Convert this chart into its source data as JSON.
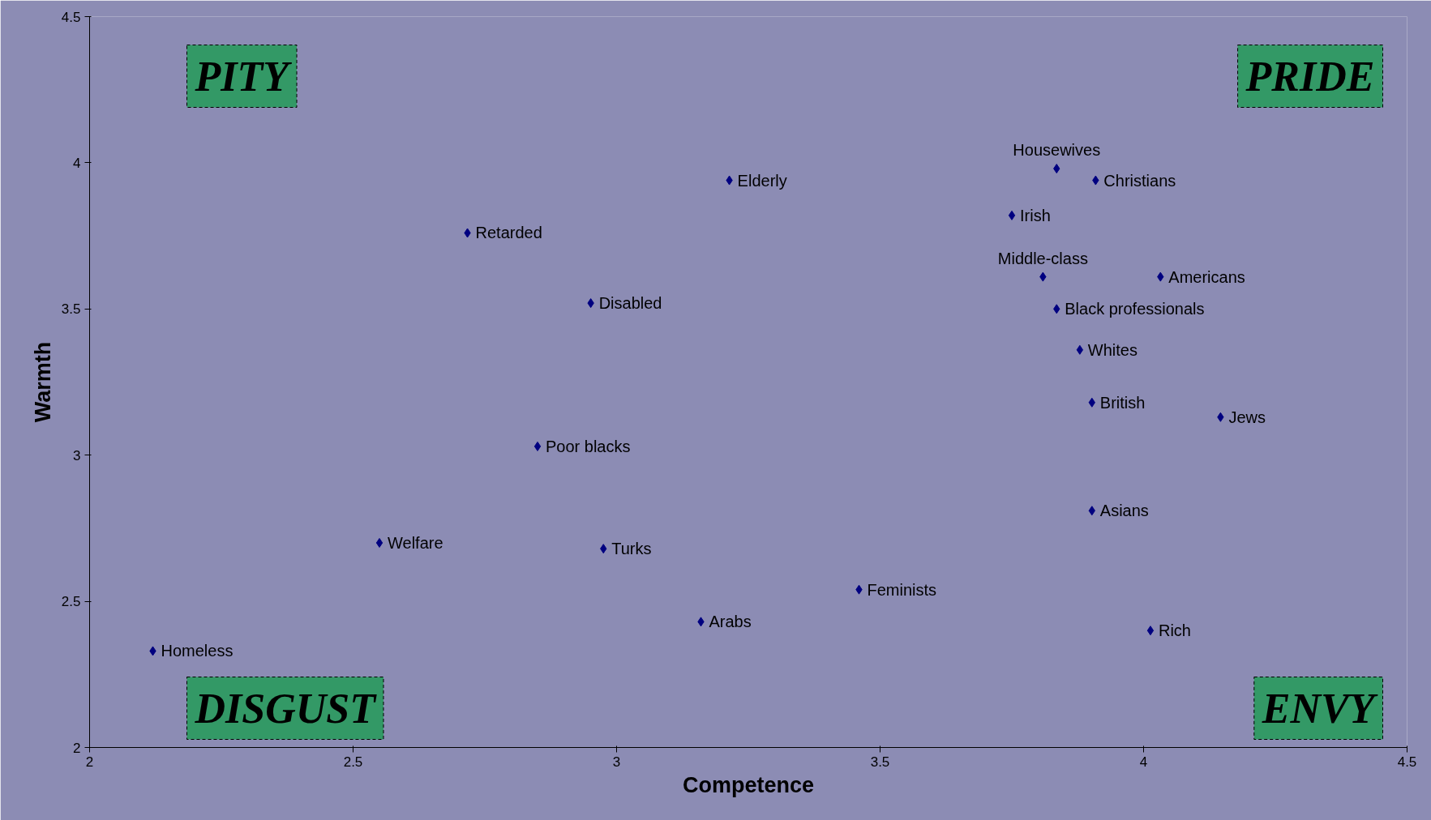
{
  "chart_data": {
    "type": "scatter",
    "xlabel": "Competence",
    "ylabel": "Warmth",
    "xlim": [
      2,
      4.5
    ],
    "xticks": [
      2,
      2.5,
      3,
      3.5,
      4,
      4.5
    ],
    "ylim": [
      2,
      4.5
    ],
    "yticks": [
      2,
      2.5,
      3,
      3.5,
      4,
      4.5
    ],
    "grid": false,
    "marker": "diamond",
    "series": [
      {
        "color": "#000080",
        "x": [
          2.12,
          2.55,
          2.85,
          2.975,
          3.16,
          3.46,
          2.717,
          2.951,
          3.214,
          3.835,
          3.909,
          3.75,
          3.809,
          4.032,
          3.835,
          3.879,
          3.902,
          4.146,
          3.902,
          4.013
        ],
        "values": [
          2.33,
          2.7,
          3.03,
          2.68,
          2.43,
          2.54,
          3.76,
          3.52,
          3.94,
          3.98,
          3.94,
          3.82,
          3.61,
          3.61,
          3.5,
          3.36,
          3.18,
          3.13,
          2.81,
          2.4
        ]
      }
    ],
    "annotations": [
      {
        "text": "Homeless",
        "x": 2.12,
        "y": 2.33
      },
      {
        "text": "Welfare",
        "x": 2.55,
        "y": 2.7
      },
      {
        "text": "Poor blacks",
        "x": 2.85,
        "y": 3.03
      },
      {
        "text": "Turks",
        "x": 2.975,
        "y": 2.68
      },
      {
        "text": "Arabs",
        "x": 3.16,
        "y": 2.43
      },
      {
        "text": "Feminists",
        "x": 3.46,
        "y": 2.54
      },
      {
        "text": "Retarded",
        "x": 2.717,
        "y": 3.76
      },
      {
        "text": "Disabled",
        "x": 2.951,
        "y": 3.52
      },
      {
        "text": "Elderly",
        "x": 3.214,
        "y": 3.94
      },
      {
        "text": "Housewives",
        "x": 3.835,
        "y": 3.98
      },
      {
        "text": "Christians",
        "x": 3.909,
        "y": 3.94
      },
      {
        "text": "Irish",
        "x": 3.75,
        "y": 3.82
      },
      {
        "text": "Middle-class",
        "x": 3.809,
        "y": 3.61
      },
      {
        "text": "Americans",
        "x": 4.032,
        "y": 3.61
      },
      {
        "text": "Black professionals",
        "x": 3.835,
        "y": 3.5
      },
      {
        "text": "Whites",
        "x": 3.879,
        "y": 3.36
      },
      {
        "text": "British",
        "x": 3.902,
        "y": 3.18
      },
      {
        "text": "Jews",
        "x": 4.146,
        "y": 3.13
      },
      {
        "text": "Asians",
        "x": 3.902,
        "y": 2.81
      },
      {
        "text": "Rich",
        "x": 4.013,
        "y": 2.4
      },
      "PITY",
      "PRIDE",
      "DISGUST",
      "ENVY"
    ]
  }
}
